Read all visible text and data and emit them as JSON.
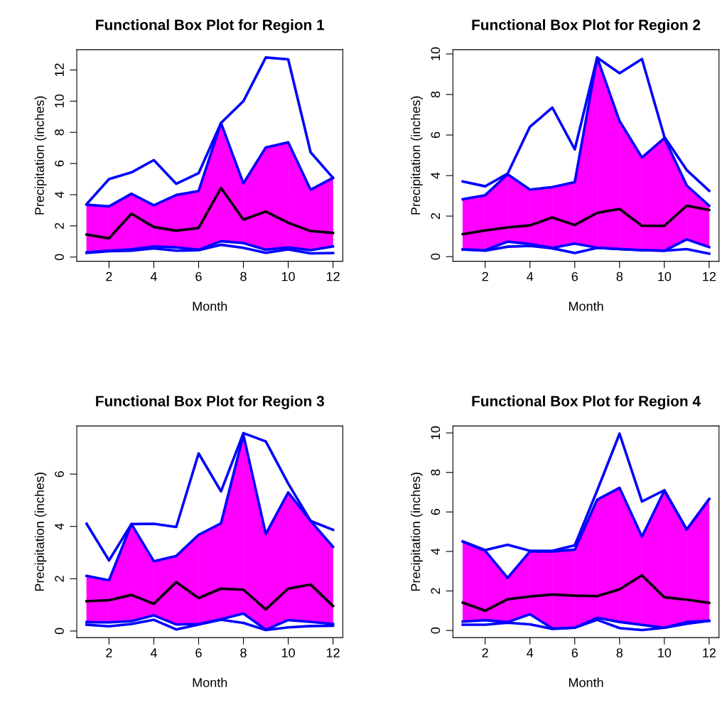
{
  "chart_data": [
    {
      "type": "line",
      "title": "Functional Box Plot for Region 1",
      "xlabel": "Month",
      "ylabel": "Precipitation (inches)",
      "x": [
        1,
        2,
        3,
        4,
        5,
        6,
        7,
        8,
        9,
        10,
        11,
        12
      ],
      "xlim": [
        0.56,
        12.44
      ],
      "xticks": [
        2,
        4,
        6,
        8,
        10,
        12
      ],
      "ylim": [
        -0.27,
        13.3
      ],
      "yticks": [
        0,
        2,
        4,
        6,
        8,
        10,
        12
      ],
      "grid": false,
      "legend": false,
      "line_style": "solid",
      "marker": "none",
      "series": [
        {
          "color": "#0000ff",
          "values": [
            3.4,
            5.0,
            5.43,
            6.22,
            4.7,
            5.38,
            8.6,
            10.0,
            12.8,
            12.68,
            6.72,
            5.08
          ]
        },
        {
          "color": "#0000ff",
          "values": [
            3.36,
            3.25,
            4.06,
            3.32,
            3.98,
            4.24,
            8.6,
            4.73,
            7.03,
            7.36,
            4.32,
            5.08
          ]
        },
        {
          "color": "#0000ff",
          "values": [
            0.3,
            0.41,
            0.5,
            0.68,
            0.62,
            0.47,
            1.02,
            0.9,
            0.47,
            0.62,
            0.44,
            0.68
          ]
        },
        {
          "color": "#0000ff",
          "values": [
            0.27,
            0.38,
            0.41,
            0.56,
            0.41,
            0.44,
            0.79,
            0.59,
            0.27,
            0.49,
            0.24,
            0.26
          ]
        },
        {
          "color": "#000000",
          "colors": [
            "#ff00ff",
            "#ff00ff",
            "#ff00ff",
            "#ff00ff",
            "#ff00ff",
            "#ff00ff",
            "#ff00ff",
            "#ff00ff",
            "#ff00ff",
            "#ff00ff",
            "#ff00ff",
            "#ff00ff"
          ],
          "values": [
            1.44,
            1.2,
            2.78,
            1.93,
            1.69,
            1.87,
            4.43,
            2.4,
            2.92,
            2.2,
            1.67,
            1.55
          ],
          "lower": [
            0.3,
            0.41,
            0.5,
            0.68,
            0.62,
            0.47,
            1.02,
            0.9,
            0.47,
            0.62,
            0.44,
            0.68
          ],
          "upper": [
            3.36,
            3.25,
            4.06,
            3.32,
            3.98,
            4.24,
            8.6,
            4.73,
            7.03,
            7.36,
            4.32,
            5.08
          ]
        }
      ]
    },
    {
      "type": "line",
      "title": "Functional Box Plot for Region 2",
      "xlabel": "Month",
      "ylabel": "Precipitation (inches)",
      "x": [
        1,
        2,
        3,
        4,
        5,
        6,
        7,
        8,
        9,
        10,
        11,
        12
      ],
      "xlim": [
        0.56,
        12.44
      ],
      "xticks": [
        2,
        4,
        6,
        8,
        10,
        12
      ],
      "ylim": [
        -0.23,
        10.21
      ],
      "yticks": [
        0,
        2,
        4,
        6,
        8,
        10
      ],
      "grid": false,
      "legend": false,
      "line_style": "solid",
      "marker": "none",
      "series": [
        {
          "color": "#0000ff",
          "values": [
            3.71,
            3.47,
            4.09,
            6.41,
            7.35,
            5.29,
            9.82,
            9.05,
            9.75,
            5.91,
            4.27,
            3.25
          ]
        },
        {
          "color": "#0000ff",
          "values": [
            2.83,
            3.03,
            4.06,
            3.31,
            3.43,
            3.68,
            9.82,
            6.69,
            4.89,
            5.85,
            3.51,
            2.51
          ]
        },
        {
          "color": "#0000ff",
          "values": [
            0.35,
            0.32,
            0.74,
            0.62,
            0.43,
            0.64,
            0.44,
            0.37,
            0.32,
            0.29,
            0.85,
            0.47
          ]
        },
        {
          "color": "#0000ff",
          "values": [
            0.35,
            0.29,
            0.49,
            0.53,
            0.41,
            0.18,
            0.43,
            0.37,
            0.32,
            0.29,
            0.37,
            0.15
          ]
        },
        {
          "color": "#000000",
          "colors": [
            "#ff00ff",
            "#ff00ff",
            "#ff00ff",
            "#ff00ff",
            "#ff00ff",
            "#ff00ff",
            "#ff00ff",
            "#ff00ff",
            "#ff00ff",
            "#ff00ff",
            "#ff00ff",
            "#ff00ff"
          ],
          "values": [
            1.11,
            1.29,
            1.44,
            1.54,
            1.93,
            1.56,
            2.16,
            2.35,
            1.52,
            1.52,
            2.51,
            2.3
          ],
          "lower": [
            0.35,
            0.32,
            0.74,
            0.62,
            0.43,
            0.64,
            0.44,
            0.37,
            0.32,
            0.29,
            0.85,
            0.47
          ],
          "upper": [
            2.83,
            3.03,
            4.06,
            3.31,
            3.43,
            3.68,
            9.82,
            6.69,
            4.89,
            5.85,
            3.51,
            2.51
          ]
        }
      ]
    },
    {
      "type": "line",
      "title": "Functional Box Plot for Region 3",
      "xlabel": "Month",
      "ylabel": "Precipitation (inches)",
      "x": [
        1,
        2,
        3,
        4,
        5,
        6,
        7,
        8,
        9,
        10,
        11,
        12
      ],
      "xlim": [
        0.56,
        12.44
      ],
      "xticks": [
        2,
        4,
        6,
        8,
        10,
        12
      ],
      "ylim": [
        -0.25,
        7.84
      ],
      "yticks": [
        0,
        2,
        4,
        6
      ],
      "grid": false,
      "legend": false,
      "line_style": "solid",
      "marker": "none",
      "series": [
        {
          "color": "#0000ff",
          "values": [
            4.1,
            2.7,
            4.09,
            4.1,
            3.98,
            6.79,
            5.34,
            7.57,
            7.25,
            5.64,
            4.21,
            3.87
          ]
        },
        {
          "color": "#0000ff",
          "values": [
            2.11,
            1.94,
            4.09,
            2.67,
            2.87,
            3.68,
            4.12,
            7.5,
            3.71,
            5.3,
            4.21,
            3.22
          ]
        },
        {
          "color": "#0000ff",
          "values": [
            0.34,
            0.33,
            0.38,
            0.6,
            0.25,
            0.27,
            0.45,
            0.67,
            0.05,
            0.42,
            0.35,
            0.27
          ]
        },
        {
          "color": "#0000ff",
          "values": [
            0.24,
            0.18,
            0.27,
            0.43,
            0.06,
            0.25,
            0.43,
            0.31,
            0.04,
            0.14,
            0.19,
            0.2
          ]
        },
        {
          "color": "#000000",
          "colors": [
            "#ff00ff",
            "#ff00ff",
            "#ff00ff",
            "#ff00ff",
            "#ff00ff",
            "#ff00ff",
            "#ff00ff",
            "#ff00ff",
            "#ff00ff",
            "#ff00ff",
            "#ff00ff",
            "#ff00ff"
          ],
          "values": [
            1.14,
            1.18,
            1.38,
            1.04,
            1.87,
            1.26,
            1.62,
            1.58,
            0.83,
            1.62,
            1.78,
            0.96
          ],
          "lower": [
            0.34,
            0.33,
            0.38,
            0.6,
            0.25,
            0.27,
            0.45,
            0.67,
            0.05,
            0.42,
            0.35,
            0.27
          ],
          "upper": [
            2.11,
            1.94,
            4.09,
            2.67,
            2.87,
            3.68,
            4.12,
            7.5,
            3.71,
            5.3,
            4.21,
            3.22
          ]
        }
      ]
    },
    {
      "type": "line",
      "title": "Functional Box Plot for Region 4",
      "xlabel": "Month",
      "ylabel": "Precipitation (inches)",
      "x": [
        1,
        2,
        3,
        4,
        5,
        6,
        7,
        8,
        9,
        10,
        11,
        12
      ],
      "xlim": [
        0.56,
        12.44
      ],
      "xticks": [
        2,
        4,
        6,
        8,
        10,
        12
      ],
      "ylim": [
        -0.36,
        10.35
      ],
      "yticks": [
        0,
        2,
        4,
        6,
        8,
        10
      ],
      "grid": false,
      "legend": false,
      "line_style": "solid",
      "marker": "none",
      "series": [
        {
          "color": "#0000ff",
          "values": [
            4.51,
            4.07,
            4.34,
            4.03,
            4.03,
            4.31,
            7.08,
            9.96,
            6.53,
            7.1,
            5.11,
            6.65
          ]
        },
        {
          "color": "#0000ff",
          "values": [
            4.49,
            4.04,
            2.66,
            4.0,
            4.0,
            4.09,
            6.62,
            7.22,
            4.75,
            7.08,
            5.11,
            6.65
          ]
        },
        {
          "color": "#0000ff",
          "values": [
            0.45,
            0.52,
            0.42,
            0.82,
            0.1,
            0.14,
            0.64,
            0.43,
            0.28,
            0.14,
            0.43,
            0.49
          ]
        },
        {
          "color": "#0000ff",
          "values": [
            0.29,
            0.29,
            0.39,
            0.31,
            0.08,
            0.14,
            0.54,
            0.12,
            0.02,
            0.14,
            0.34,
            0.49
          ]
        },
        {
          "color": "#000000",
          "colors": [
            "#ff00ff",
            "#ff00ff",
            "#ff00ff",
            "#ff00ff",
            "#ff00ff",
            "#ff00ff",
            "#ff00ff",
            "#ff00ff",
            "#ff00ff",
            "#ff00ff",
            "#ff00ff",
            "#ff00ff"
          ],
          "values": [
            1.41,
            1.0,
            1.58,
            1.72,
            1.82,
            1.76,
            1.74,
            2.08,
            2.79,
            1.68,
            1.56,
            1.4
          ],
          "lower": [
            0.45,
            0.52,
            0.42,
            0.82,
            0.1,
            0.14,
            0.64,
            0.43,
            0.28,
            0.14,
            0.43,
            0.49
          ],
          "upper": [
            4.49,
            4.04,
            2.66,
            4.0,
            4.0,
            4.09,
            6.62,
            7.22,
            4.75,
            7.08,
            5.11,
            6.65
          ]
        }
      ]
    }
  ]
}
